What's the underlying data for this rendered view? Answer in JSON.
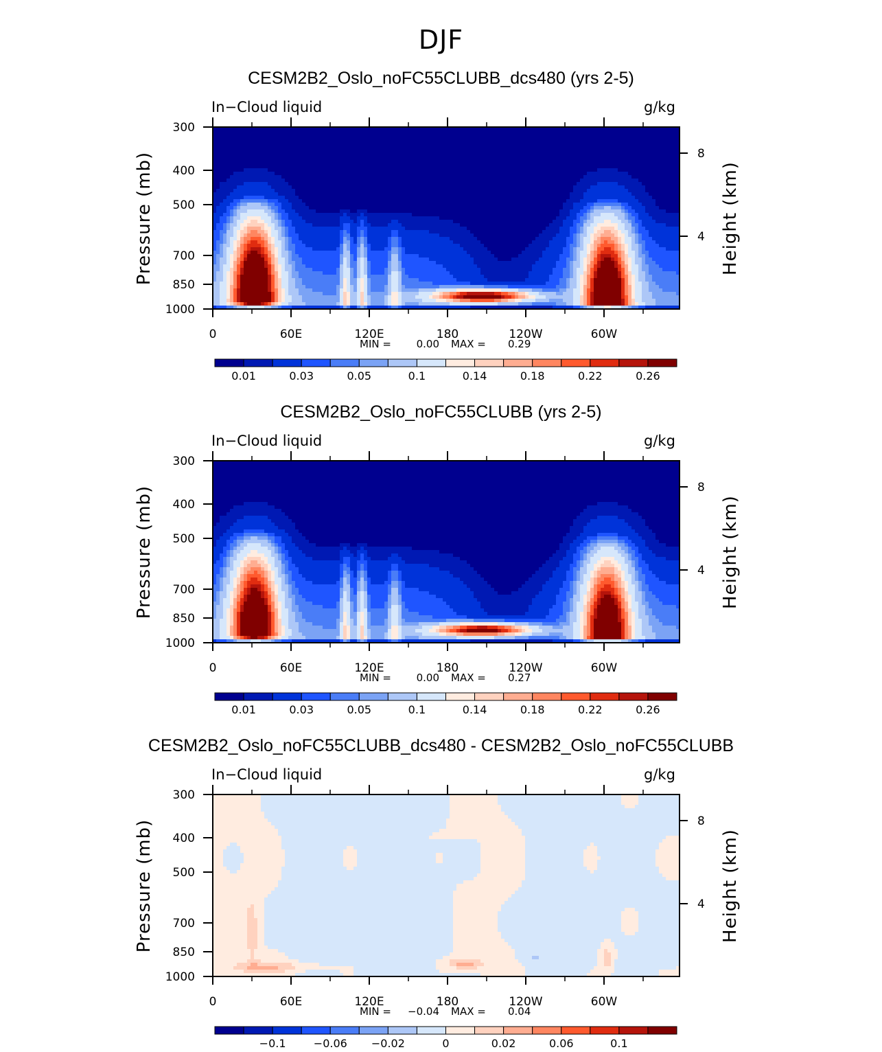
{
  "page_title": "DJF",
  "colors": {
    "levels_scale": [
      "#00008f",
      "#0019b3",
      "#0033d9",
      "#1f55ff",
      "#4a7df7",
      "#7ba3f5",
      "#adc7f7",
      "#d6e7fb",
      "#ffece0",
      "#ffd2bf",
      "#ffad91",
      "#ff8660",
      "#ff5a2e",
      "#e02c10",
      "#b5140b",
      "#800000"
    ]
  },
  "chart_data": [
    {
      "type": "heatmap",
      "title": "CESM2B2_Oslo_noFC55CLUBB_dcs480 (yrs 2-5)",
      "left_label": "In−Cloud liquid",
      "right_label": "g/kg",
      "ylabel": "Pressure (mb)",
      "ylabel_right": "Height (km)",
      "x_ticks": [
        "0",
        "60E",
        "120E",
        "180",
        "120W",
        "60W"
      ],
      "y_ticks": [
        "300",
        "400",
        "500",
        "700",
        "850",
        "1000"
      ],
      "y_ticks_right": [
        "8",
        "4"
      ],
      "min_label": "MIN =",
      "min_value": "0.00",
      "max_label": "MAX =",
      "max_value": "0.29",
      "colorbar_labels": [
        "0.01",
        "0.03",
        "0.05",
        "0.1",
        "0.14",
        "0.18",
        "0.22",
        "0.26"
      ]
    },
    {
      "type": "heatmap",
      "title": "CESM2B2_Oslo_noFC55CLUBB (yrs 2-5)",
      "left_label": "In−Cloud liquid",
      "right_label": "g/kg",
      "ylabel": "Pressure (mb)",
      "ylabel_right": "Height (km)",
      "x_ticks": [
        "0",
        "60E",
        "120E",
        "180",
        "120W",
        "60W"
      ],
      "y_ticks": [
        "300",
        "400",
        "500",
        "700",
        "850",
        "1000"
      ],
      "y_ticks_right": [
        "8",
        "4"
      ],
      "min_label": "MIN =",
      "min_value": "0.00",
      "max_label": "MAX =",
      "max_value": "0.27",
      "colorbar_labels": [
        "0.01",
        "0.03",
        "0.05",
        "0.1",
        "0.14",
        "0.18",
        "0.22",
        "0.26"
      ]
    },
    {
      "type": "heatmap",
      "title": "CESM2B2_Oslo_noFC55CLUBB_dcs480 - CESM2B2_Oslo_noFC55CLUBB",
      "left_label": "In−Cloud liquid",
      "right_label": "g/kg",
      "ylabel": "Pressure (mb)",
      "ylabel_right": "Height (km)",
      "x_ticks": [
        "0",
        "60E",
        "120E",
        "180",
        "120W",
        "60W"
      ],
      "y_ticks": [
        "300",
        "400",
        "500",
        "700",
        "850",
        "1000"
      ],
      "y_ticks_right": [
        "8",
        "4"
      ],
      "min_label": "MIN =",
      "min_value": "−0.04",
      "max_label": "MAX =",
      "max_value": "0.04",
      "colorbar_labels": [
        "−0.1",
        "−0.06",
        "−0.02",
        "0",
        "0.02",
        "0.06",
        "0.1"
      ]
    }
  ]
}
